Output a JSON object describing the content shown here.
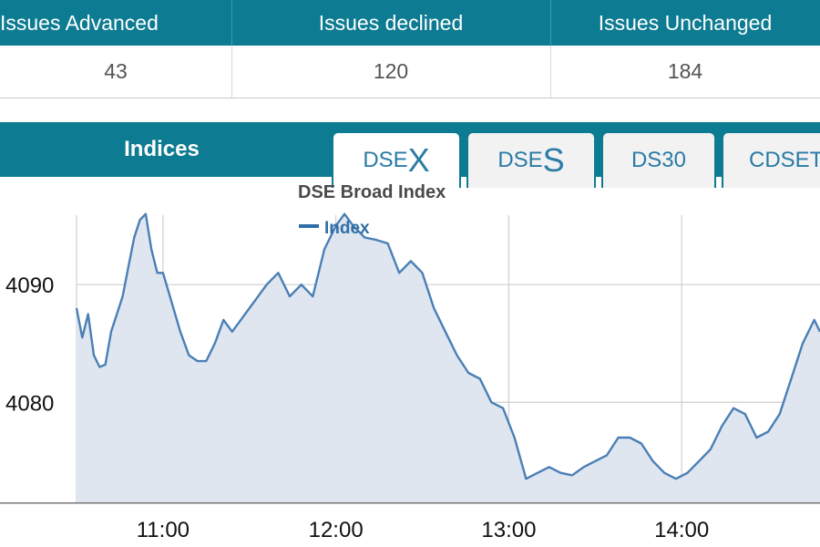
{
  "stats": {
    "headers": [
      "Issues Advanced",
      "Issues declined",
      "Issues Unchanged"
    ],
    "values": [
      "43",
      "120",
      "184"
    ]
  },
  "indices": {
    "title": "Indices",
    "tabs": [
      {
        "prefix": "DSE",
        "suffix": "X",
        "active": true
      },
      {
        "prefix": "DSE",
        "suffix": "S",
        "active": false
      },
      {
        "prefix": "DS30",
        "suffix": "",
        "active": false
      },
      {
        "prefix": "CDSET",
        "suffix": "",
        "active": false
      }
    ]
  },
  "colors": {
    "header_bg": "#0d7b91",
    "line": "#4a7fb5",
    "fill": "#dde5ef"
  },
  "chart_data": {
    "type": "area",
    "title": "DSE Broad Index",
    "legend": [
      "Index"
    ],
    "legend_placement": "top-left",
    "grid": true,
    "x_ticks": [
      "11:00",
      "12:00",
      "13:00",
      "14:00"
    ],
    "y_ticks": [
      4080,
      4090
    ],
    "xlim": [
      "10:30",
      "14:48"
    ],
    "ylim": [
      4071.5,
      4099
    ],
    "series": [
      {
        "name": "Index",
        "x": [
          "10:30",
          "10:32",
          "10:34",
          "10:36",
          "10:38",
          "10:40",
          "10:42",
          "10:44",
          "10:46",
          "10:48",
          "10:50",
          "10:52",
          "10:54",
          "10:56",
          "10:58",
          "11:00",
          "11:03",
          "11:06",
          "11:09",
          "11:12",
          "11:15",
          "11:18",
          "11:21",
          "11:24",
          "11:27",
          "11:30",
          "11:33",
          "11:36",
          "11:40",
          "11:44",
          "11:48",
          "11:52",
          "11:56",
          "12:00",
          "12:03",
          "12:06",
          "12:10",
          "12:14",
          "12:18",
          "12:22",
          "12:26",
          "12:30",
          "12:34",
          "12:38",
          "12:42",
          "12:46",
          "12:50",
          "12:54",
          "12:58",
          "13:02",
          "13:06",
          "13:10",
          "13:14",
          "13:18",
          "13:22",
          "13:26",
          "13:30",
          "13:34",
          "13:38",
          "13:42",
          "13:46",
          "13:50",
          "13:54",
          "13:58",
          "14:02",
          "14:06",
          "14:10",
          "14:14",
          "14:18",
          "14:22",
          "14:26",
          "14:30",
          "14:34",
          "14:38",
          "14:42",
          "14:46",
          "14:48"
        ],
        "values": [
          4088,
          4085.5,
          4087.5,
          4084,
          4083,
          4083.2,
          4086,
          4087.5,
          4089,
          4091.5,
          4094,
          4095.5,
          4096,
          4093,
          4091,
          4091,
          4088.5,
          4086,
          4084,
          4083.5,
          4083.5,
          4085,
          4087,
          4086,
          4087,
          4088,
          4089,
          4090,
          4091,
          4089,
          4090,
          4089,
          4093,
          4095,
          4096,
          4095,
          4094,
          4093.8,
          4093.5,
          4091,
          4092,
          4091,
          4088,
          4086,
          4084,
          4082.5,
          4082,
          4080,
          4079.5,
          4077,
          4073.5,
          4074,
          4074.5,
          4074,
          4073.8,
          4074.5,
          4075,
          4075.5,
          4077,
          4077,
          4076.5,
          4075,
          4074,
          4073.5,
          4074,
          4075,
          4076,
          4078,
          4079.5,
          4079,
          4077,
          4077.5,
          4079,
          4082,
          4085,
          4087,
          4086
        ]
      }
    ]
  }
}
